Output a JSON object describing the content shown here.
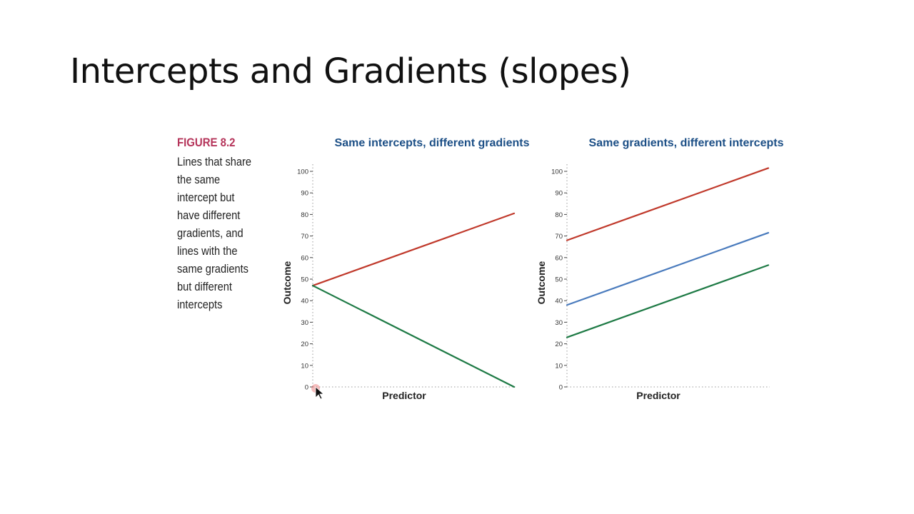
{
  "slide": {
    "title": "Intercepts and Gradients (slopes)"
  },
  "figure": {
    "label": "FIGURE 8.2",
    "caption": "Lines that share the same intercept but have different gradients, and lines with the same gradients but different intercepts"
  },
  "chart_data": [
    {
      "type": "line",
      "title": "Same intercepts, different gradients",
      "xlabel": "Predictor",
      "ylabel": "Outcome",
      "ylim": [
        0,
        100
      ],
      "yticks": [
        0,
        10,
        20,
        30,
        40,
        50,
        60,
        70,
        80,
        90,
        100
      ],
      "xlim": [
        0,
        1
      ],
      "grid": false,
      "x": [
        0,
        1
      ],
      "series": [
        {
          "values": [
            47,
            80.5
          ],
          "color": "#c0392b"
        },
        {
          "values": [
            47,
            0
          ],
          "color": "#1e7a45"
        }
      ]
    },
    {
      "type": "line",
      "title": "Same gradients, different intercepts",
      "xlabel": "Predictor",
      "ylabel": "Outcome",
      "ylim": [
        0,
        100
      ],
      "yticks": [
        0,
        10,
        20,
        30,
        40,
        50,
        60,
        70,
        80,
        90,
        100
      ],
      "xlim": [
        0,
        1
      ],
      "grid": false,
      "x": [
        0,
        1
      ],
      "series": [
        {
          "values": [
            68,
            101.5
          ],
          "color": "#c0392b"
        },
        {
          "values": [
            38,
            71.5
          ],
          "color": "#4a7bbd"
        },
        {
          "values": [
            23,
            56.5
          ],
          "color": "#1e7a45"
        }
      ]
    }
  ]
}
